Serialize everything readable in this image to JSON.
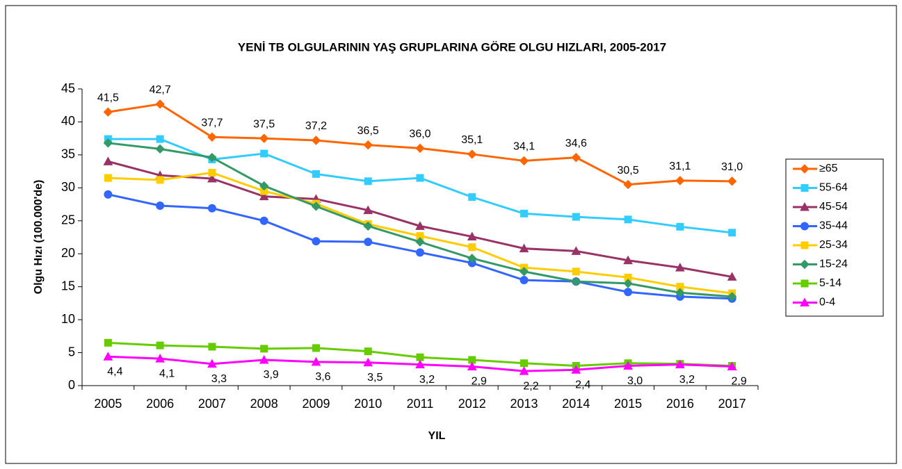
{
  "chart_data": {
    "type": "line",
    "title": "YENİ TB OLGULARININ YAŞ GRUPLARINA GÖRE OLGU HIZLARI, 2005-2017",
    "x_label": "YIL",
    "y_label": "Olgu Hızı (100.000'de)",
    "categories": [
      "2005",
      "2006",
      "2007",
      "2008",
      "2009",
      "2010",
      "2011",
      "2012",
      "2013",
      "2014",
      "2015",
      "2016",
      "2017"
    ],
    "ylim": [
      0,
      45
    ],
    "yticks": [
      0,
      5,
      10,
      15,
      20,
      25,
      30,
      35,
      40,
      45
    ],
    "grid": false,
    "legend": "right",
    "series": [
      {
        "name": "≥65",
        "color": "#ff6600",
        "marker": "diamond",
        "label_position": "above",
        "values": [
          41.5,
          42.7,
          37.7,
          37.5,
          37.2,
          36.5,
          36.0,
          35.1,
          34.1,
          34.6,
          30.5,
          31.1,
          31.0
        ],
        "value_labels": [
          "41,5",
          "42,7",
          "37,7",
          "37,5",
          "37,2",
          "36,5",
          "36,0",
          "35,1",
          "34,1",
          "34,6",
          "30,5",
          "31,1",
          "31,0"
        ]
      },
      {
        "name": "55-64",
        "color": "#33ccff",
        "marker": "square",
        "values": [
          37.4,
          37.4,
          34.3,
          35.2,
          32.1,
          31.0,
          31.5,
          28.6,
          26.1,
          25.6,
          25.2,
          24.1,
          23.2
        ]
      },
      {
        "name": "45-54",
        "color": "#993366",
        "marker": "triangle",
        "values": [
          34.0,
          31.9,
          31.4,
          28.7,
          28.3,
          26.6,
          24.2,
          22.6,
          20.8,
          20.4,
          19.0,
          17.9,
          16.5
        ]
      },
      {
        "name": "35-44",
        "color": "#3366ff",
        "marker": "circle",
        "values": [
          29.0,
          27.3,
          26.9,
          25.0,
          21.9,
          21.8,
          20.2,
          18.6,
          16.0,
          15.8,
          14.2,
          13.5,
          13.2
        ]
      },
      {
        "name": "25-34",
        "color": "#ffcc00",
        "marker": "square",
        "values": [
          31.5,
          31.2,
          32.3,
          29.5,
          27.6,
          24.5,
          22.7,
          21.0,
          17.9,
          17.3,
          16.4,
          15.0,
          14.0
        ]
      },
      {
        "name": "15-24",
        "color": "#339966",
        "marker": "diamond",
        "values": [
          36.8,
          35.9,
          34.6,
          30.3,
          27.2,
          24.2,
          21.8,
          19.3,
          17.3,
          15.8,
          15.5,
          14.1,
          13.5
        ]
      },
      {
        "name": "5-14",
        "color": "#66cc00",
        "marker": "square",
        "values": [
          6.5,
          6.1,
          5.9,
          5.6,
          5.7,
          5.2,
          4.3,
          3.9,
          3.4,
          3.0,
          3.4,
          3.3,
          3.0
        ]
      },
      {
        "name": "0-4",
        "color": "#ff00ff",
        "marker": "triangle",
        "label_position": "below",
        "values": [
          4.4,
          4.1,
          3.3,
          3.9,
          3.6,
          3.5,
          3.2,
          2.9,
          2.2,
          2.4,
          3.0,
          3.2,
          2.9
        ],
        "value_labels": [
          "4,4",
          "4,1",
          "3,3",
          "3,9",
          "3,6",
          "3,5",
          "3,2",
          "2,9",
          "2,2",
          "2,4",
          "3,0",
          "3,2",
          "2,9"
        ]
      }
    ]
  }
}
